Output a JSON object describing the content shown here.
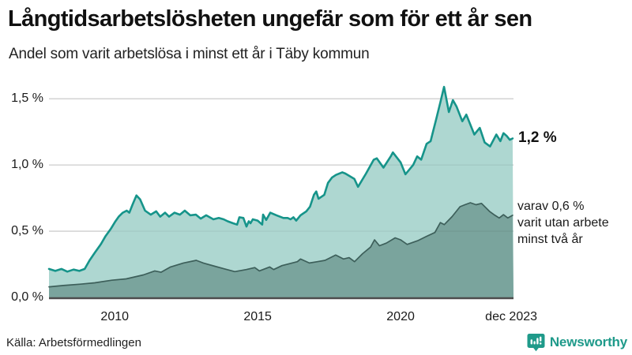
{
  "header": {
    "title": "Långtidsarbetslösheten ungefär som för ett år sen",
    "subtitle": "Andel som varit arbetslösa i minst ett år i Täby kommun"
  },
  "annotations": {
    "total_value_label": "1,2 %",
    "subset_line1": "varav 0,6 %",
    "subset_line2": "varit utan arbete",
    "subset_line3": "minst två år"
  },
  "footer": {
    "source": "Källa: Arbetsförmedlingen",
    "brand": "Newsworthy"
  },
  "colors": {
    "total_line": "#16948a",
    "total_fill": "#aed7d1",
    "subset_line": "#3d5f5a",
    "subset_fill": "#7aa49d",
    "gridline": "#dcdcdc",
    "baseline": "#4d4d4d",
    "brand_teal": "#1f9a8a"
  },
  "chart_data": {
    "type": "area",
    "title": "Långtidsarbetslösheten ungefär som för ett år sen",
    "subtitle": "Andel som varit arbetslösa i minst ett år i Täby kommun",
    "unit": "%",
    "x_range": [
      2007.7,
      2023.95
    ],
    "ylim": [
      0,
      1.65
    ],
    "grid": "horizontal",
    "legend_position": "right-annotations",
    "y_ticks": [
      {
        "label": "0,0 %",
        "v": 0.0
      },
      {
        "label": "0,5 %",
        "v": 0.5
      },
      {
        "label": "1,0 %",
        "v": 1.0
      },
      {
        "label": "1,5 %",
        "v": 1.5
      }
    ],
    "x_ticks": [
      {
        "label": "2010",
        "x": 2010
      },
      {
        "label": "2015",
        "x": 2015
      },
      {
        "label": "2020",
        "x": 2020
      },
      {
        "label": "dec 2023",
        "x": 2023.87
      }
    ],
    "series": [
      {
        "name": "Arbetslösa minst ett år",
        "end_value": 1.2,
        "line_color": "#16948a",
        "fill_color": "#aed7d1",
        "line_width": 2.6,
        "points": [
          [
            2007.7,
            0.215
          ],
          [
            2007.92,
            0.2
          ],
          [
            2008.14,
            0.215
          ],
          [
            2008.34,
            0.195
          ],
          [
            2008.56,
            0.21
          ],
          [
            2008.76,
            0.2
          ],
          [
            2008.95,
            0.215
          ],
          [
            2009.12,
            0.28
          ],
          [
            2009.31,
            0.34
          ],
          [
            2009.51,
            0.4
          ],
          [
            2009.67,
            0.46
          ],
          [
            2009.87,
            0.52
          ],
          [
            2010.01,
            0.57
          ],
          [
            2010.14,
            0.61
          ],
          [
            2010.28,
            0.64
          ],
          [
            2010.42,
            0.655
          ],
          [
            2010.51,
            0.64
          ],
          [
            2010.62,
            0.7
          ],
          [
            2010.76,
            0.77
          ],
          [
            2010.89,
            0.74
          ],
          [
            2011.06,
            0.655
          ],
          [
            2011.26,
            0.625
          ],
          [
            2011.45,
            0.65
          ],
          [
            2011.59,
            0.61
          ],
          [
            2011.76,
            0.64
          ],
          [
            2011.9,
            0.61
          ],
          [
            2012.09,
            0.64
          ],
          [
            2012.28,
            0.625
          ],
          [
            2012.45,
            0.655
          ],
          [
            2012.64,
            0.62
          ],
          [
            2012.84,
            0.625
          ],
          [
            2013.01,
            0.595
          ],
          [
            2013.2,
            0.62
          ],
          [
            2013.45,
            0.59
          ],
          [
            2013.64,
            0.6
          ],
          [
            2013.81,
            0.59
          ],
          [
            2013.95,
            0.575
          ],
          [
            2014.14,
            0.56
          ],
          [
            2014.28,
            0.55
          ],
          [
            2014.36,
            0.605
          ],
          [
            2014.5,
            0.6
          ],
          [
            2014.61,
            0.535
          ],
          [
            2014.69,
            0.575
          ],
          [
            2014.75,
            0.56
          ],
          [
            2014.83,
            0.59
          ],
          [
            2015.0,
            0.58
          ],
          [
            2015.16,
            0.55
          ],
          [
            2015.19,
            0.625
          ],
          [
            2015.3,
            0.585
          ],
          [
            2015.44,
            0.64
          ],
          [
            2015.66,
            0.62
          ],
          [
            2015.9,
            0.6
          ],
          [
            2016.05,
            0.6
          ],
          [
            2016.15,
            0.59
          ],
          [
            2016.25,
            0.605
          ],
          [
            2016.35,
            0.58
          ],
          [
            2016.5,
            0.62
          ],
          [
            2016.7,
            0.65
          ],
          [
            2016.83,
            0.685
          ],
          [
            2016.97,
            0.775
          ],
          [
            2017.05,
            0.8
          ],
          [
            2017.13,
            0.745
          ],
          [
            2017.33,
            0.775
          ],
          [
            2017.46,
            0.865
          ],
          [
            2017.6,
            0.905
          ],
          [
            2017.74,
            0.925
          ],
          [
            2017.96,
            0.945
          ],
          [
            2018.07,
            0.935
          ],
          [
            2018.38,
            0.895
          ],
          [
            2018.51,
            0.835
          ],
          [
            2018.79,
            0.935
          ],
          [
            2019.06,
            1.04
          ],
          [
            2019.17,
            1.05
          ],
          [
            2019.4,
            0.98
          ],
          [
            2019.67,
            1.07
          ],
          [
            2019.73,
            1.095
          ],
          [
            2020.0,
            1.02
          ],
          [
            2020.17,
            0.93
          ],
          [
            2020.44,
            1.0
          ],
          [
            2020.58,
            1.065
          ],
          [
            2020.72,
            1.04
          ],
          [
            2020.91,
            1.16
          ],
          [
            2021.05,
            1.18
          ],
          [
            2021.11,
            1.23
          ],
          [
            2021.25,
            1.35
          ],
          [
            2021.4,
            1.48
          ],
          [
            2021.52,
            1.59
          ],
          [
            2021.69,
            1.4
          ],
          [
            2021.83,
            1.49
          ],
          [
            2021.96,
            1.44
          ],
          [
            2022.16,
            1.33
          ],
          [
            2022.3,
            1.38
          ],
          [
            2022.58,
            1.23
          ],
          [
            2022.77,
            1.28
          ],
          [
            2022.94,
            1.17
          ],
          [
            2023.13,
            1.14
          ],
          [
            2023.35,
            1.23
          ],
          [
            2023.49,
            1.18
          ],
          [
            2023.6,
            1.24
          ],
          [
            2023.71,
            1.22
          ],
          [
            2023.82,
            1.19
          ],
          [
            2023.92,
            1.2
          ]
        ]
      },
      {
        "name": "Arbetslösa minst två år",
        "end_value": 0.6,
        "line_color": "#3d5f5a",
        "fill_color": "#7aa49d",
        "line_width": 1.7,
        "points": [
          [
            2007.7,
            0.08
          ],
          [
            2008.2,
            0.09
          ],
          [
            2008.8,
            0.1
          ],
          [
            2009.3,
            0.11
          ],
          [
            2009.9,
            0.13
          ],
          [
            2010.4,
            0.14
          ],
          [
            2011.0,
            0.17
          ],
          [
            2011.4,
            0.2
          ],
          [
            2011.62,
            0.19
          ],
          [
            2011.95,
            0.23
          ],
          [
            2012.4,
            0.26
          ],
          [
            2012.85,
            0.28
          ],
          [
            2013.1,
            0.26
          ],
          [
            2013.5,
            0.235
          ],
          [
            2013.85,
            0.215
          ],
          [
            2014.2,
            0.195
          ],
          [
            2014.6,
            0.21
          ],
          [
            2014.9,
            0.225
          ],
          [
            2015.06,
            0.2
          ],
          [
            2015.42,
            0.23
          ],
          [
            2015.56,
            0.21
          ],
          [
            2015.85,
            0.24
          ],
          [
            2016.12,
            0.255
          ],
          [
            2016.39,
            0.27
          ],
          [
            2016.5,
            0.29
          ],
          [
            2016.81,
            0.26
          ],
          [
            2017.09,
            0.27
          ],
          [
            2017.36,
            0.28
          ],
          [
            2017.73,
            0.32
          ],
          [
            2018.0,
            0.29
          ],
          [
            2018.2,
            0.3
          ],
          [
            2018.39,
            0.27
          ],
          [
            2018.67,
            0.33
          ],
          [
            2018.95,
            0.38
          ],
          [
            2019.09,
            0.435
          ],
          [
            2019.26,
            0.39
          ],
          [
            2019.5,
            0.41
          ],
          [
            2019.81,
            0.45
          ],
          [
            2020.0,
            0.435
          ],
          [
            2020.23,
            0.4
          ],
          [
            2020.62,
            0.43
          ],
          [
            2020.9,
            0.46
          ],
          [
            2021.2,
            0.49
          ],
          [
            2021.39,
            0.565
          ],
          [
            2021.53,
            0.55
          ],
          [
            2021.8,
            0.61
          ],
          [
            2022.08,
            0.685
          ],
          [
            2022.25,
            0.7
          ],
          [
            2022.44,
            0.715
          ],
          [
            2022.64,
            0.7
          ],
          [
            2022.83,
            0.71
          ],
          [
            2023.11,
            0.65
          ],
          [
            2023.3,
            0.62
          ],
          [
            2023.45,
            0.6
          ],
          [
            2023.6,
            0.625
          ],
          [
            2023.75,
            0.6
          ],
          [
            2023.92,
            0.62
          ]
        ]
      }
    ]
  }
}
